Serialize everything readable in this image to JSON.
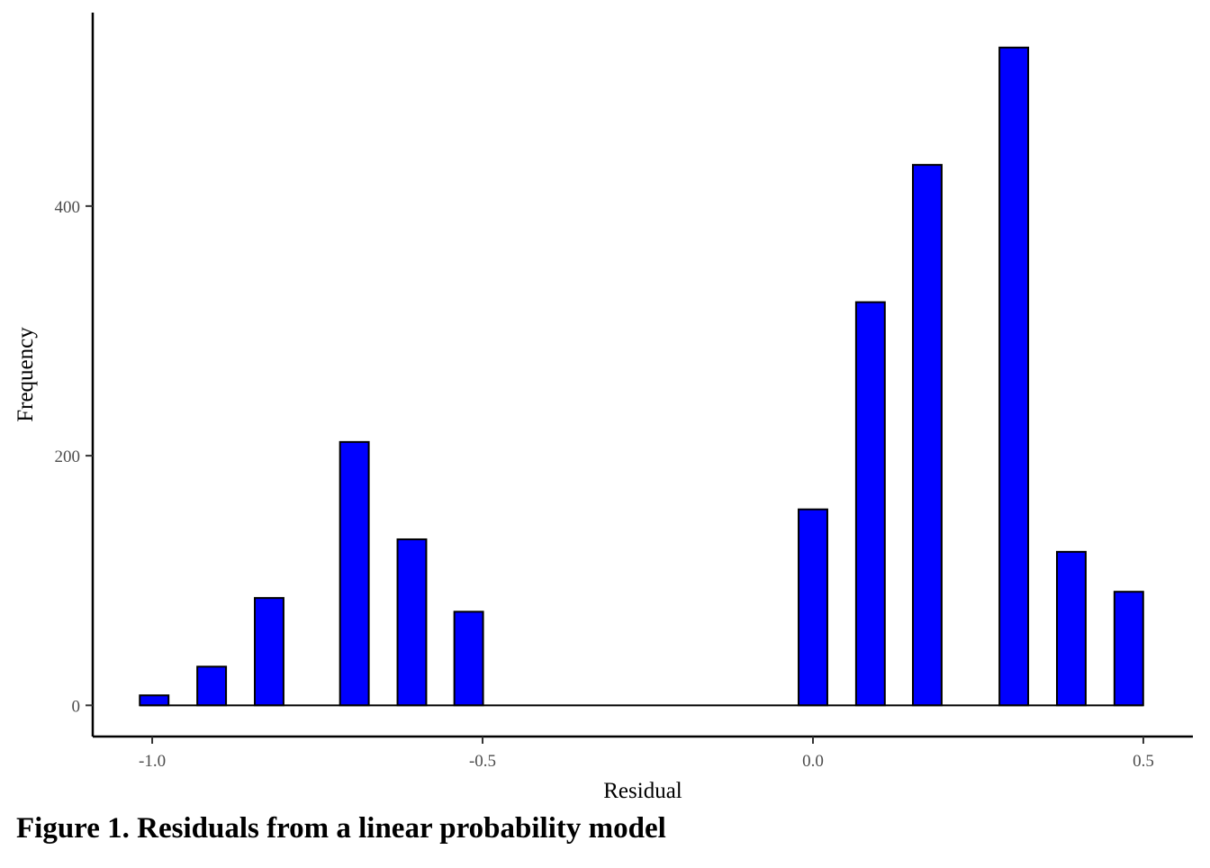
{
  "caption": "Figure 1. Residuals from a linear probability model",
  "chart_data": {
    "type": "bar",
    "title": "",
    "xlabel": "Residual",
    "ylabel": "Frequency",
    "xlim": [
      -1.09,
      0.575
    ],
    "ylim": [
      -25,
      555
    ],
    "x_ticks": [
      {
        "value": -1.0,
        "label": "-1.0"
      },
      {
        "value": -0.5,
        "label": "-0.5"
      },
      {
        "value": 0.0,
        "label": "0.0"
      },
      {
        "value": 0.5,
        "label": "0.5"
      }
    ],
    "y_ticks": [
      {
        "value": 0,
        "label": "0"
      },
      {
        "value": 200,
        "label": "200"
      },
      {
        "value": 400,
        "label": "400"
      }
    ],
    "bin_width": 0.0435,
    "bars": [
      {
        "x": -0.997,
        "value": 8
      },
      {
        "x": -0.91,
        "value": 31
      },
      {
        "x": -0.823,
        "value": 86
      },
      {
        "x": -0.694,
        "value": 211
      },
      {
        "x": -0.607,
        "value": 133
      },
      {
        "x": -0.521,
        "value": 75
      },
      {
        "x": 0.0,
        "value": 157
      },
      {
        "x": 0.087,
        "value": 323
      },
      {
        "x": 0.173,
        "value": 433
      },
      {
        "x": 0.304,
        "value": 527
      },
      {
        "x": 0.391,
        "value": 123
      },
      {
        "x": 0.478,
        "value": 91
      }
    ],
    "fill_color": "#0000ff",
    "outline_color": "#000000",
    "grid": false,
    "legend": "none"
  }
}
